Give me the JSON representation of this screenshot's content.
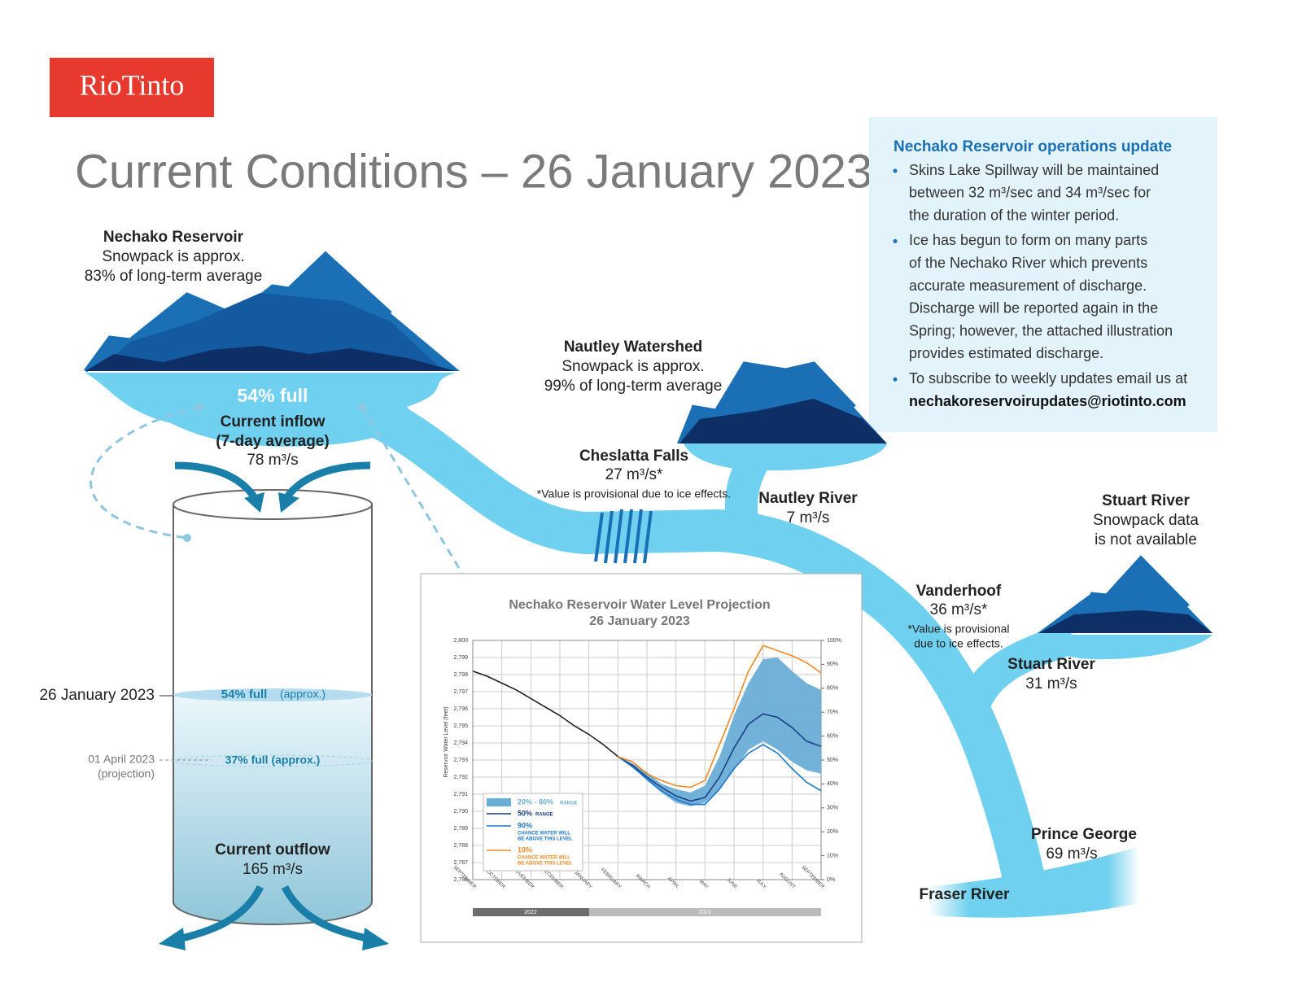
{
  "header": {
    "logo": "RioTinto",
    "title": "Current Conditions – 26 January 2023"
  },
  "update": {
    "title": "Nechako Reservoir operations update",
    "bullets": [
      [
        "Skins Lake Spillway will be maintained",
        "between 32 m³/sec and 34 m³/sec for",
        "the duration of the winter period."
      ],
      [
        "Ice has begun to form on many parts",
        "of the Nechako River which prevents",
        "accurate measurement of discharge.",
        "Discharge will be reported again in the",
        "Spring; however, the attached illustration",
        "provides estimated discharge."
      ],
      [
        "To subscribe to weekly updates email us at",
        "nechakoreservoirupdates@riotinto.com"
      ]
    ]
  },
  "reservoir": {
    "name": "Nechako Reservoir",
    "line1": "Snowpack is approx.",
    "line2": "83% of long-term average",
    "full": "54% full"
  },
  "inflow": {
    "title": "Current inflow",
    "note": "(7-day average)",
    "value": "78 m³/s"
  },
  "nautley_watershed": {
    "name": "Nautley Watershed",
    "line1": "Snowpack is approx.",
    "line2": "99% of long-term average"
  },
  "cheslatta": {
    "name": "Cheslatta Falls",
    "value": "27 m³/s*",
    "note": "*Value is provisional due to ice effects."
  },
  "nautley_river": {
    "name": "Nautley River",
    "value": "7 m³/s"
  },
  "stuart_watershed": {
    "name": "Stuart River",
    "line1": "Snowpack data",
    "line2": "is not available"
  },
  "vanderhoof": {
    "name": "Vanderhoof",
    "value": "36 m³/s*",
    "note1": "*Value is provisional",
    "note2": "due to ice effects."
  },
  "stuart_river": {
    "name": "Stuart River",
    "value": "31 m³/s"
  },
  "prince_george": {
    "name": "Prince George",
    "value": "69 m³/s"
  },
  "fraser_river": {
    "name": "Fraser River"
  },
  "cylinder": {
    "date_now": "26 January 2023",
    "full_now": "54% full",
    "approx": "(approx.)",
    "date_proj": "01 April 2023",
    "proj_note": "(projection)",
    "full_proj": "37% full (approx.)"
  },
  "outflow": {
    "title": "Current outflow",
    "value": "165 m³/s"
  },
  "chart_data": {
    "type": "line",
    "title": "Nechako Reservoir Water Level Projection",
    "subtitle": "26 January 2023",
    "ylabel": "Reservoir Water Level (feet)",
    "years": [
      "2022",
      "2023"
    ],
    "categories": [
      "SEPTEMBER",
      null,
      "OCTOBER",
      null,
      "NOVEMBER",
      null,
      "DECEMBER",
      null,
      "JANUARY",
      null,
      "FEBRUARY",
      null,
      "MARCH",
      null,
      "APRIL",
      null,
      "MAY",
      null,
      "JUNE",
      null,
      "JULY",
      null,
      "AUGUST",
      null,
      "SEPTEMBER"
    ],
    "ylim": [
      2786,
      2800
    ],
    "yticks": [
      {
        "value": 2786,
        "label": "2,786"
      },
      {
        "value": 2787,
        "label": "2,787"
      },
      {
        "value": 2788,
        "label": "2,788"
      },
      {
        "value": 2789,
        "label": "2,789"
      },
      {
        "value": 2790,
        "label": "2,790"
      },
      {
        "value": 2791,
        "label": "2,791"
      },
      {
        "value": 2792,
        "label": "2,792"
      },
      {
        "value": 2793,
        "label": "2,793"
      },
      {
        "value": 2794,
        "label": "2,794"
      },
      {
        "value": 2795,
        "label": "2,795"
      },
      {
        "value": 2796,
        "label": "2,796"
      },
      {
        "value": 2797,
        "label": "2,797"
      },
      {
        "value": 2798,
        "label": "2,798"
      },
      {
        "value": 2799,
        "label": "2,799"
      },
      {
        "value": 2800,
        "label": "2,800"
      }
    ],
    "y2lim": [
      0,
      100
    ],
    "y2ticks": [
      {
        "value": 0,
        "label": "0%"
      },
      {
        "value": 10,
        "label": "10%"
      },
      {
        "value": 20,
        "label": "20%"
      },
      {
        "value": 30,
        "label": "30%"
      },
      {
        "value": 40,
        "label": "40%"
      },
      {
        "value": 50,
        "label": "50%"
      },
      {
        "value": 60,
        "label": "60%"
      },
      {
        "value": 70,
        "label": "70%"
      },
      {
        "value": 80,
        "label": "80%"
      },
      {
        "value": 90,
        "label": "90%"
      },
      {
        "value": 100,
        "label": "100%"
      }
    ],
    "grid": true,
    "legend": "bottom-left",
    "band": {
      "name": "20% - 80%",
      "sub": [
        "RANGE"
      ],
      "color": "#6aaed6",
      "high": [
        null,
        null,
        null,
        null,
        null,
        null,
        null,
        null,
        null,
        null,
        2793.2,
        2792.8,
        2792.3,
        2791.6,
        2791.3,
        2791.1,
        2791.5,
        2793.2,
        2795.6,
        2797.5,
        2798.9,
        2799.0,
        2798.2,
        2797.5,
        2797.1
      ],
      "low": [
        null,
        null,
        null,
        null,
        null,
        null,
        null,
        null,
        null,
        null,
        2793.2,
        2792.6,
        2791.8,
        2791.1,
        2790.5,
        2790.3,
        2790.5,
        2791.3,
        2792.4,
        2793.6,
        2794.1,
        2793.6,
        2792.9,
        2792.4,
        2792.2
      ]
    },
    "series": [
      {
        "color": "#222222",
        "values": [
          2798.2,
          2797.9,
          2797.5,
          2797.1,
          2796.6,
          2796.1,
          2795.6,
          2795.0,
          2794.5,
          2793.9,
          2793.2,
          null,
          null,
          null,
          null,
          null,
          null,
          null,
          null,
          null,
          null,
          null,
          null,
          null,
          null
        ]
      },
      {
        "name": "50%",
        "sub": [
          "RANGE"
        ],
        "color": "#1a3f8a",
        "values": [
          null,
          null,
          null,
          null,
          null,
          null,
          null,
          null,
          null,
          null,
          2793.2,
          2792.7,
          2792.0,
          2791.4,
          2790.9,
          2790.6,
          2790.8,
          2792.0,
          2793.7,
          2795.1,
          2795.7,
          2795.5,
          2794.9,
          2794.1,
          2793.8
        ]
      },
      {
        "name": "90%",
        "sub": [
          "CHANCE WATER WILL",
          "BE ABOVE THIS LEVEL"
        ],
        "color": "#1f78c8",
        "values": [
          null,
          null,
          null,
          null,
          null,
          null,
          null,
          null,
          null,
          null,
          2793.2,
          2792.6,
          2791.9,
          2791.2,
          2790.7,
          2790.4,
          2790.4,
          2791.3,
          2792.5,
          2793.4,
          2793.9,
          2793.4,
          2792.5,
          2791.7,
          2791.2
        ]
      },
      {
        "name": "10%",
        "sub": [
          "CHANCE WATER WILL",
          "BE ABOVE THIS LEVEL"
        ],
        "color": "#f08a24",
        "values": [
          null,
          null,
          null,
          null,
          null,
          null,
          null,
          null,
          null,
          null,
          2793.2,
          2792.9,
          2792.2,
          2791.8,
          2791.5,
          2791.4,
          2791.8,
          2793.9,
          2796.0,
          2798.2,
          2799.7,
          2799.4,
          2799.1,
          2798.7,
          2798.1
        ]
      }
    ]
  }
}
